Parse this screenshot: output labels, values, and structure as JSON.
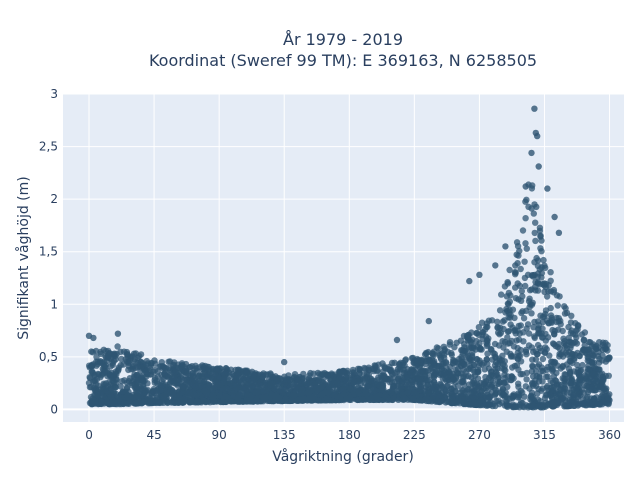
{
  "chart_data": {
    "type": "scatter",
    "title_lines": [
      "År 1979 - 2019",
      "Koordinat (Sweref 99 TM): E 369163, N 6258505"
    ],
    "xlabel": "Vågriktning (grader)",
    "ylabel": "Signifikant våghöjd (m)",
    "xlim": [
      -18,
      370
    ],
    "ylim": [
      -0.12,
      3.0
    ],
    "x_ticks": [
      0,
      45,
      90,
      135,
      180,
      225,
      270,
      315,
      360
    ],
    "x_tick_labels": [
      "0",
      "45",
      "90",
      "135",
      "180",
      "225",
      "270",
      "315",
      "360"
    ],
    "y_ticks": [
      0,
      0.5,
      1,
      1.5,
      2,
      2.5,
      3
    ],
    "y_tick_labels": [
      "0",
      "0,5",
      "1",
      "1,5",
      "2",
      "2,5",
      "3"
    ],
    "grid": true,
    "legend": "none",
    "colors": {
      "marker": "#2f5573",
      "plot_bg": "#e5ecf6",
      "grid": "#ffffff",
      "text": "#2a3f5f"
    },
    "envelope": {
      "direction_deg": [
        0,
        20,
        45,
        90,
        135,
        180,
        225,
        260,
        280,
        295,
        305,
        315,
        330,
        345,
        360
      ],
      "upper_hs_m": [
        0.55,
        0.6,
        0.48,
        0.4,
        0.33,
        0.37,
        0.5,
        0.72,
        0.9,
        1.5,
        2.4,
        1.45,
        0.95,
        0.7,
        0.62
      ],
      "lower_hs_m": [
        0.05,
        0.05,
        0.06,
        0.07,
        0.08,
        0.09,
        0.09,
        0.05,
        0.03,
        0.02,
        0.02,
        0.02,
        0.03,
        0.04,
        0.05
      ]
    },
    "notable_points": [
      {
        "x": 308,
        "y": 2.86
      },
      {
        "x": 309,
        "y": 2.63
      },
      {
        "x": 310,
        "y": 2.6
      },
      {
        "x": 306,
        "y": 2.44
      },
      {
        "x": 311,
        "y": 2.31
      },
      {
        "x": 302,
        "y": 2.12
      },
      {
        "x": 317,
        "y": 2.1
      },
      {
        "x": 322,
        "y": 1.83
      },
      {
        "x": 325,
        "y": 1.68
      },
      {
        "x": 288,
        "y": 1.55
      },
      {
        "x": 281,
        "y": 1.37
      },
      {
        "x": 270,
        "y": 1.28
      },
      {
        "x": 263,
        "y": 1.22
      },
      {
        "x": 0,
        "y": 0.7
      },
      {
        "x": 3,
        "y": 0.68
      },
      {
        "x": 20,
        "y": 0.72
      },
      {
        "x": 235,
        "y": 0.84
      },
      {
        "x": 213,
        "y": 0.66
      },
      {
        "x": 135,
        "y": 0.45
      }
    ]
  }
}
